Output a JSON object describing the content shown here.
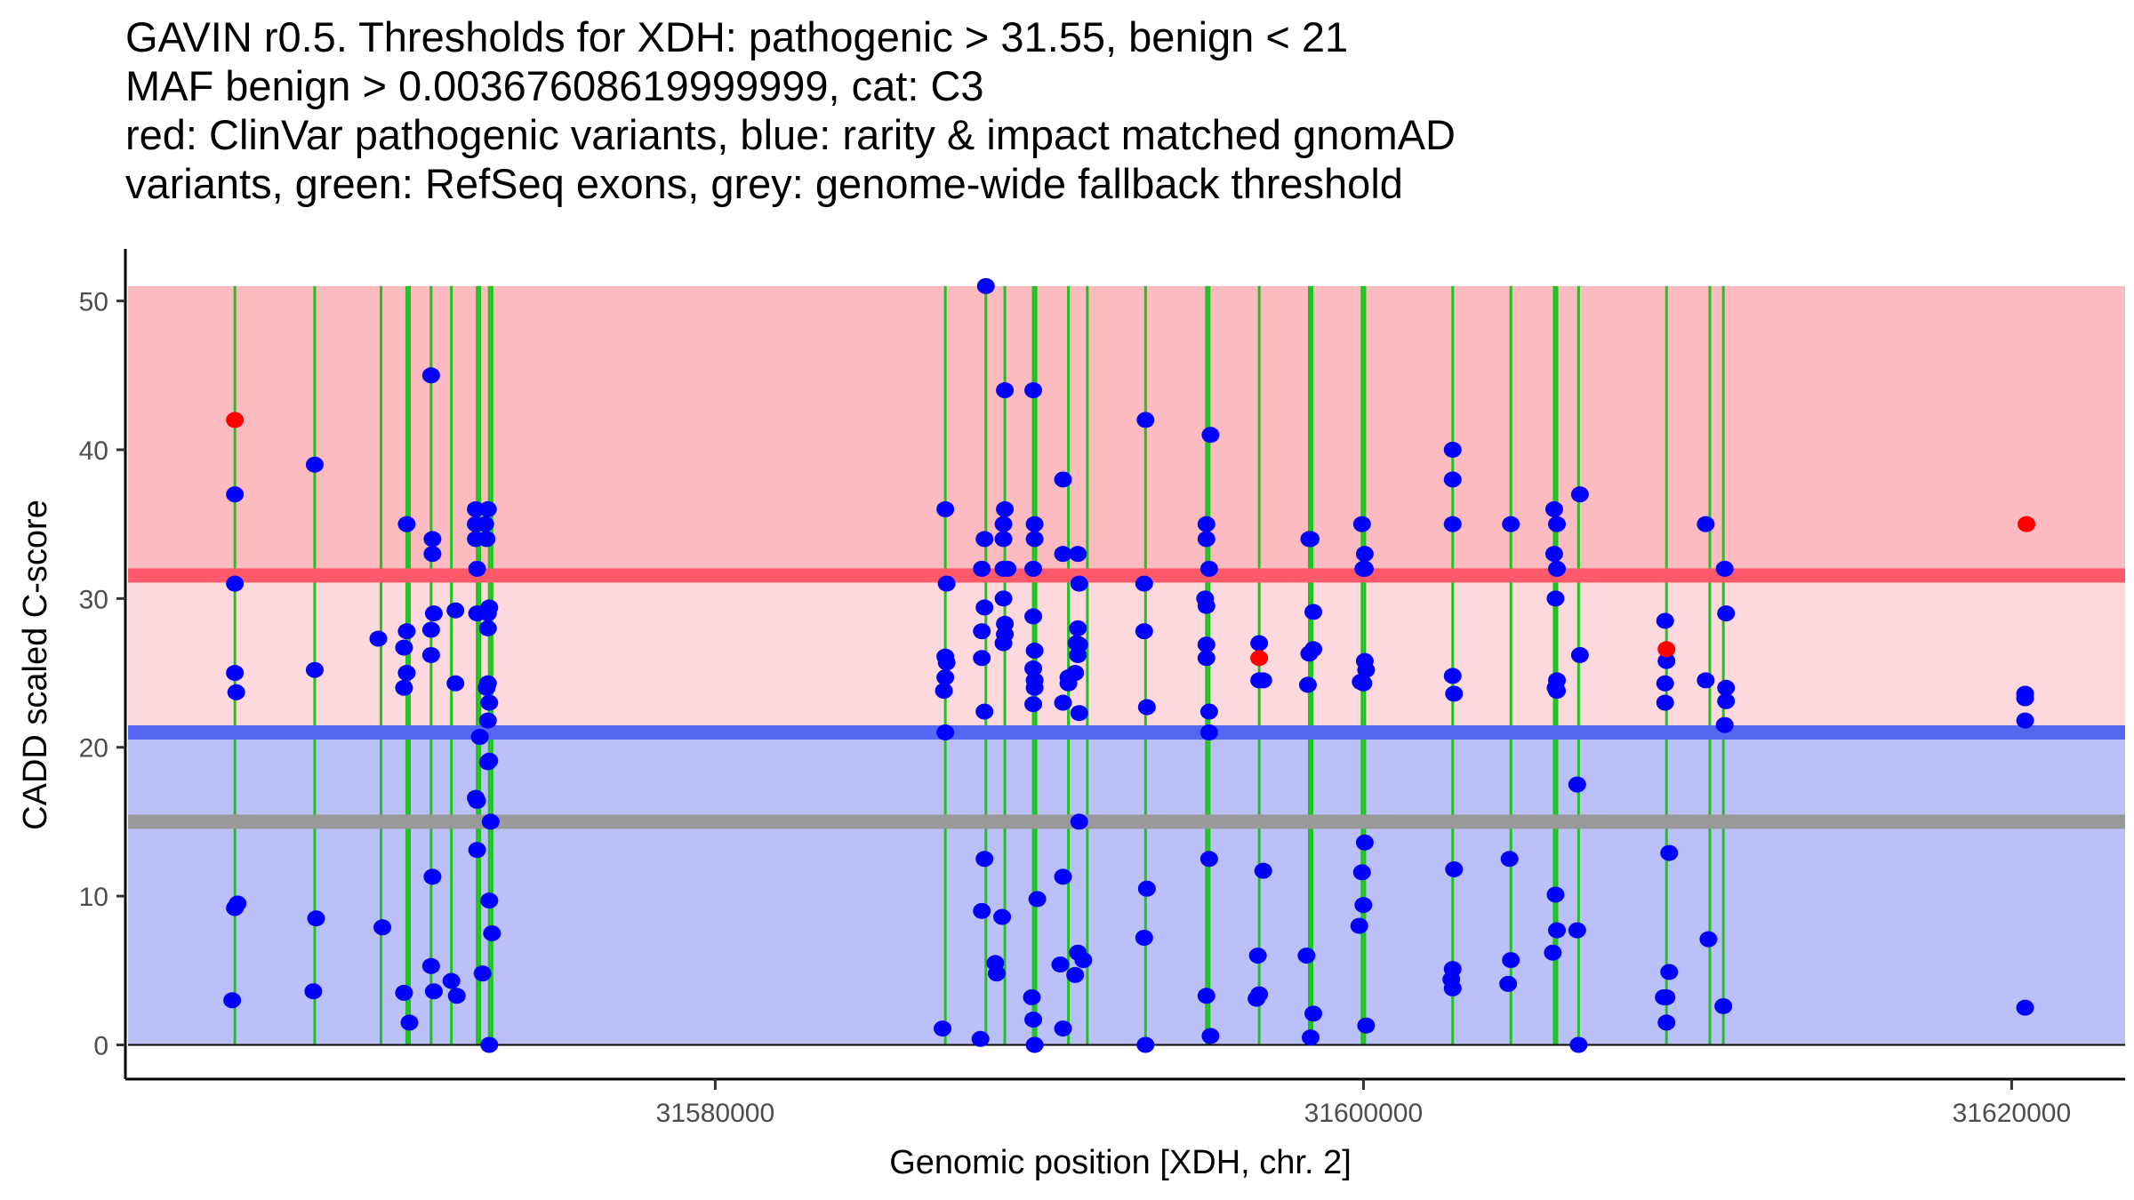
{
  "chart_data": {
    "type": "scatter",
    "title_lines": [
      "GAVIN r0.5. Thresholds for XDH: pathogenic > 31.55, benign < 21",
      "MAF benign > 0.00367608619999999, cat: C3",
      "red: ClinVar pathogenic variants, blue: rarity & impact matched gnomAD",
      "variants, green: RefSeq exons, grey: genome-wide fallback threshold"
    ],
    "xlabel": "Genomic position [XDH, chr. 2]",
    "ylabel": "CADD scaled C-score",
    "xlim": [
      31561800,
      31623500
    ],
    "ylim": [
      -2.3,
      53.5
    ],
    "x_ticks": [
      31580000,
      31600000,
      31620000
    ],
    "x_tick_labels": [
      "31580000",
      "31600000",
      "31620000"
    ],
    "y_ticks": [
      0,
      10,
      20,
      30,
      40,
      50
    ],
    "y_tick_labels": [
      "0",
      "10",
      "20",
      "30",
      "40",
      "50"
    ],
    "grid": false,
    "thresholds": {
      "pathogenic": 31.55,
      "benign": 21,
      "genome_wide_fallback": 15,
      "band_top": 51
    },
    "colors": {
      "pathogenic_band": "#fcbbc0",
      "middle_band": "#fdd8dc",
      "benign_band": "#bbc0f8",
      "pathogenic_line": "#fc5a6a",
      "benign_line": "#5468f2",
      "fallback_line": "#999999",
      "exon": "#1ec41e",
      "clinvar": "#ff0000",
      "gnomad": "#0000ff"
    },
    "exons": [
      31565179,
      31567642,
      31569688,
      31570481,
      31570565,
      31571233,
      31571859,
      31572653,
      31572736,
      31573028,
      31573112,
      31587098,
      31588350,
      31588935,
      31589812,
      31589895,
      31590897,
      31591481,
      31593276,
      31595155,
      31595239,
      31596783,
      31598328,
      31598411,
      31599956,
      31600040,
      31602753,
      31604549,
      31605885,
      31605969,
      31606637,
      31609350,
      31610686,
      31611104
    ],
    "series": [
      {
        "name": "ClinVar pathogenic variants",
        "color": "red",
        "points": [
          [
            31565179,
            42.0
          ],
          [
            31596783,
            26.0
          ],
          [
            31609350,
            26.6
          ],
          [
            31620457,
            35.0
          ]
        ]
      },
      {
        "name": "rarity & impact matched gnomAD variants",
        "color": "blue",
        "points": [
          [
            31565179,
            37.0
          ],
          [
            31565179,
            31.0
          ],
          [
            31565179,
            25.0
          ],
          [
            31565221,
            23.7
          ],
          [
            31565179,
            9.2
          ],
          [
            31565263,
            9.5
          ],
          [
            31565095,
            3.0
          ],
          [
            31567642,
            39.0
          ],
          [
            31567642,
            25.2
          ],
          [
            31567684,
            8.5
          ],
          [
            31567600,
            3.6
          ],
          [
            31569605,
            27.3
          ],
          [
            31569730,
            7.9
          ],
          [
            31570481,
            35.0
          ],
          [
            31570481,
            27.8
          ],
          [
            31570398,
            26.7
          ],
          [
            31570481,
            25.0
          ],
          [
            31570398,
            24.0
          ],
          [
            31570565,
            1.5
          ],
          [
            31570398,
            3.5
          ],
          [
            31571233,
            45.0
          ],
          [
            31571275,
            34.0
          ],
          [
            31571275,
            33.0
          ],
          [
            31571317,
            29.0
          ],
          [
            31571233,
            27.9
          ],
          [
            31571233,
            26.2
          ],
          [
            31571275,
            11.3
          ],
          [
            31571233,
            5.3
          ],
          [
            31571317,
            3.6
          ],
          [
            31571984,
            29.2
          ],
          [
            31571984,
            24.3
          ],
          [
            31571859,
            4.3
          ],
          [
            31572026,
            3.3
          ],
          [
            31572611,
            36.0
          ],
          [
            31572611,
            35.0
          ],
          [
            31572611,
            34.0
          ],
          [
            31572653,
            32.0
          ],
          [
            31572653,
            29.0
          ],
          [
            31572736,
            20.7
          ],
          [
            31572611,
            16.6
          ],
          [
            31572653,
            16.4
          ],
          [
            31572653,
            13.1
          ],
          [
            31572820,
            4.8
          ],
          [
            31572987,
            36.0
          ],
          [
            31572903,
            35.0
          ],
          [
            31572945,
            34.0
          ],
          [
            31573028,
            29.4
          ],
          [
            31572987,
            29.0
          ],
          [
            31572987,
            28.0
          ],
          [
            31572987,
            24.3
          ],
          [
            31572945,
            24.0
          ],
          [
            31573028,
            23.0
          ],
          [
            31572987,
            21.8
          ],
          [
            31573028,
            19.1
          ],
          [
            31572987,
            19.0
          ],
          [
            31573070,
            15.0
          ],
          [
            31573028,
            9.7
          ],
          [
            31573112,
            7.5
          ],
          [
            31573028,
            0.0
          ],
          [
            31587098,
            36.0
          ],
          [
            31587140,
            31.0
          ],
          [
            31587098,
            26.1
          ],
          [
            31587140,
            25.7
          ],
          [
            31587098,
            24.7
          ],
          [
            31587056,
            23.8
          ],
          [
            31587098,
            21.0
          ],
          [
            31587014,
            1.1
          ],
          [
            31588350,
            51.0
          ],
          [
            31588308,
            34.0
          ],
          [
            31588225,
            32.0
          ],
          [
            31588308,
            29.4
          ],
          [
            31588225,
            27.8
          ],
          [
            31588225,
            26.0
          ],
          [
            31588308,
            22.4
          ],
          [
            31588308,
            12.5
          ],
          [
            31588225,
            9.0
          ],
          [
            31588183,
            0.4
          ],
          [
            31588935,
            44.0
          ],
          [
            31588935,
            36.0
          ],
          [
            31588893,
            35.0
          ],
          [
            31588893,
            34.0
          ],
          [
            31588893,
            32.0
          ],
          [
            31588893,
            30.0
          ],
          [
            31588935,
            28.3
          ],
          [
            31588935,
            27.6
          ],
          [
            31588893,
            27.0
          ],
          [
            31589018,
            32.0
          ],
          [
            31588852,
            8.6
          ],
          [
            31588642,
            5.5
          ],
          [
            31588684,
            4.8
          ],
          [
            31589812,
            44.0
          ],
          [
            31589854,
            35.0
          ],
          [
            31589854,
            34.0
          ],
          [
            31589812,
            32.0
          ],
          [
            31589812,
            28.8
          ],
          [
            31589854,
            26.5
          ],
          [
            31589812,
            25.3
          ],
          [
            31589854,
            24.5
          ],
          [
            31589854,
            24.0
          ],
          [
            31589812,
            22.9
          ],
          [
            31589937,
            9.8
          ],
          [
            31589770,
            3.2
          ],
          [
            31589812,
            1.7
          ],
          [
            31589854,
            0.0
          ],
          [
            31590730,
            38.0
          ],
          [
            31590730,
            33.0
          ],
          [
            31590897,
            24.7
          ],
          [
            31590897,
            24.3
          ],
          [
            31590730,
            23.0
          ],
          [
            31590730,
            11.3
          ],
          [
            31590647,
            5.4
          ],
          [
            31590730,
            1.1
          ],
          [
            31591189,
            33.0
          ],
          [
            31591230,
            31.0
          ],
          [
            31591189,
            28.0
          ],
          [
            31591147,
            27.0
          ],
          [
            31591230,
            26.9
          ],
          [
            31591189,
            26.2
          ],
          [
            31591105,
            25.0
          ],
          [
            31591230,
            22.3
          ],
          [
            31591230,
            15.0
          ],
          [
            31591189,
            6.2
          ],
          [
            31591356,
            5.7
          ],
          [
            31591105,
            4.7
          ],
          [
            31593276,
            42.0
          ],
          [
            31593234,
            31.0
          ],
          [
            31593234,
            27.8
          ],
          [
            31593318,
            22.7
          ],
          [
            31593318,
            10.5
          ],
          [
            31593234,
            7.2
          ],
          [
            31593276,
            0.0
          ],
          [
            31595155,
            35.0
          ],
          [
            31595155,
            34.0
          ],
          [
            31595281,
            41.0
          ],
          [
            31595239,
            32.0
          ],
          [
            31595114,
            30.0
          ],
          [
            31595155,
            29.5
          ],
          [
            31595155,
            26.9
          ],
          [
            31595155,
            26.0
          ],
          [
            31595239,
            22.4
          ],
          [
            31595239,
            21.0
          ],
          [
            31595239,
            12.5
          ],
          [
            31595155,
            3.3
          ],
          [
            31595281,
            0.6
          ],
          [
            31596783,
            27.0
          ],
          [
            31596783,
            24.5
          ],
          [
            31596908,
            24.5
          ],
          [
            31596908,
            11.7
          ],
          [
            31596742,
            6.0
          ],
          [
            31596700,
            3.1
          ],
          [
            31596783,
            3.4
          ],
          [
            31598328,
            34.0
          ],
          [
            31598370,
            34.0
          ],
          [
            31598453,
            29.1
          ],
          [
            31598453,
            26.6
          ],
          [
            31598328,
            26.3
          ],
          [
            31598286,
            24.2
          ],
          [
            31598244,
            6.0
          ],
          [
            31598453,
            2.1
          ],
          [
            31598370,
            0.5
          ],
          [
            31599956,
            35.0
          ],
          [
            31600040,
            33.0
          ],
          [
            31600040,
            32.0
          ],
          [
            31599998,
            32.0
          ],
          [
            31600040,
            25.8
          ],
          [
            31600082,
            25.2
          ],
          [
            31599914,
            24.4
          ],
          [
            31599998,
            24.3
          ],
          [
            31600040,
            13.6
          ],
          [
            31599956,
            11.6
          ],
          [
            31599998,
            9.4
          ],
          [
            31599872,
            8.0
          ],
          [
            31600082,
            1.3
          ],
          [
            31602753,
            40.0
          ],
          [
            31602753,
            38.0
          ],
          [
            31602753,
            35.0
          ],
          [
            31602753,
            24.8
          ],
          [
            31602795,
            23.6
          ],
          [
            31602795,
            11.8
          ],
          [
            31602753,
            5.1
          ],
          [
            31602711,
            4.4
          ],
          [
            31602753,
            3.8
          ],
          [
            31604549,
            35.0
          ],
          [
            31604507,
            12.5
          ],
          [
            31604549,
            5.7
          ],
          [
            31604465,
            4.1
          ],
          [
            31605885,
            36.0
          ],
          [
            31605969,
            35.0
          ],
          [
            31605885,
            33.0
          ],
          [
            31605969,
            32.0
          ],
          [
            31605927,
            30.0
          ],
          [
            31605969,
            24.5
          ],
          [
            31605927,
            24.0
          ],
          [
            31605969,
            23.8
          ],
          [
            31605927,
            10.1
          ],
          [
            31605969,
            7.7
          ],
          [
            31605843,
            6.2
          ],
          [
            31606679,
            37.0
          ],
          [
            31606679,
            26.2
          ],
          [
            31606595,
            17.5
          ],
          [
            31606595,
            7.7
          ],
          [
            31606637,
            0.0
          ],
          [
            31609308,
            28.5
          ],
          [
            31609350,
            25.8
          ],
          [
            31609308,
            24.3
          ],
          [
            31609308,
            23.0
          ],
          [
            31609433,
            12.9
          ],
          [
            31609433,
            4.9
          ],
          [
            31609266,
            3.2
          ],
          [
            31609350,
            3.2
          ],
          [
            31609350,
            1.5
          ],
          [
            31610560,
            35.0
          ],
          [
            31610560,
            24.5
          ],
          [
            31610644,
            7.1
          ],
          [
            31611146,
            32.0
          ],
          [
            31611187,
            29.0
          ],
          [
            31611187,
            24.0
          ],
          [
            31611187,
            23.1
          ],
          [
            31611146,
            21.5
          ],
          [
            31611104,
            2.6
          ],
          [
            31620415,
            23.6
          ],
          [
            31620415,
            23.3
          ],
          [
            31620415,
            21.8
          ],
          [
            31620415,
            2.5
          ]
        ]
      }
    ]
  }
}
